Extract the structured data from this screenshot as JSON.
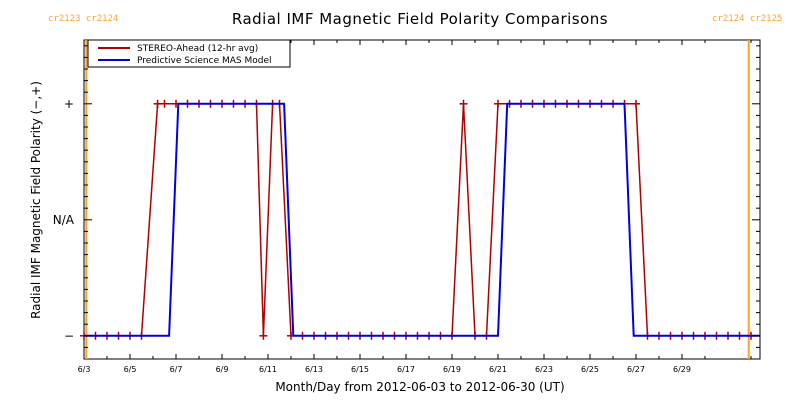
{
  "chart_data": {
    "type": "line",
    "title": "Radial IMF Magnetic Field Polarity Comparisons",
    "xlabel": "Month/Day from 2012-06-03 to 2012-06-30 (UT)",
    "ylabel": "Radial IMF Magnetic Field Polarity (−,+)",
    "x_unit": "days since 2012-06-03 00:00 UT",
    "xlim": [
      0,
      29.4
    ],
    "ylim": [
      -1.2,
      1.55
    ],
    "x_ticks": [
      {
        "value": 0,
        "label": "6/3"
      },
      {
        "value": 2,
        "label": "6/5"
      },
      {
        "value": 4,
        "label": "6/7"
      },
      {
        "value": 6,
        "label": "6/9"
      },
      {
        "value": 8,
        "label": "6/11"
      },
      {
        "value": 10,
        "label": "6/13"
      },
      {
        "value": 12,
        "label": "6/15"
      },
      {
        "value": 14,
        "label": "6/17"
      },
      {
        "value": 16,
        "label": "6/19"
      },
      {
        "value": 18,
        "label": "6/21"
      },
      {
        "value": 20,
        "label": "6/23"
      },
      {
        "value": 22,
        "label": "6/25"
      },
      {
        "value": 24,
        "label": "6/27"
      },
      {
        "value": 26,
        "label": "6/29"
      }
    ],
    "y_ticks": [
      {
        "value": 1,
        "label": "+"
      },
      {
        "value": 0,
        "label": "N/A"
      },
      {
        "value": -1,
        "label": "−"
      }
    ],
    "grid": false,
    "legend_position": "top-left",
    "series": [
      {
        "name": "STEREO-Ahead (12-hr avg)",
        "color": "#b00000",
        "markers": "plus",
        "points": [
          [
            0,
            -1
          ],
          [
            0.5,
            -1
          ],
          [
            1,
            -1
          ],
          [
            1.5,
            -1
          ],
          [
            2,
            -1
          ],
          [
            2.5,
            -1
          ],
          [
            3.2,
            1
          ],
          [
            3.5,
            1
          ],
          [
            4,
            1
          ],
          [
            4.5,
            1
          ],
          [
            5,
            1
          ],
          [
            5.5,
            1
          ],
          [
            6,
            1
          ],
          [
            6.5,
            1
          ],
          [
            7,
            1
          ],
          [
            7.5,
            1
          ],
          [
            7.8,
            -1
          ],
          [
            8.2,
            1
          ],
          [
            8.5,
            1
          ],
          [
            9,
            -1
          ],
          [
            9.5,
            -1
          ],
          [
            10,
            -1
          ],
          [
            10.5,
            -1
          ],
          [
            11,
            -1
          ],
          [
            11.5,
            -1
          ],
          [
            12,
            -1
          ],
          [
            12.5,
            -1
          ],
          [
            13,
            -1
          ],
          [
            13.5,
            -1
          ],
          [
            14,
            -1
          ],
          [
            14.5,
            -1
          ],
          [
            15,
            -1
          ],
          [
            15.5,
            -1
          ],
          [
            16,
            -1
          ],
          [
            16.5,
            1
          ],
          [
            17,
            -1
          ],
          [
            17.5,
            -1
          ],
          [
            18,
            1
          ],
          [
            18.5,
            1
          ],
          [
            19,
            1
          ],
          [
            19.5,
            1
          ],
          [
            20,
            1
          ],
          [
            20.5,
            1
          ],
          [
            21,
            1
          ],
          [
            21.5,
            1
          ],
          [
            22,
            1
          ],
          [
            22.5,
            1
          ],
          [
            23,
            1
          ],
          [
            23.5,
            1
          ],
          [
            24,
            1
          ],
          [
            24.5,
            -1
          ],
          [
            25,
            -1
          ],
          [
            25.5,
            -1
          ],
          [
            26,
            -1
          ],
          [
            26.5,
            -1
          ],
          [
            27,
            -1
          ],
          [
            27.5,
            -1
          ],
          [
            28,
            -1
          ],
          [
            28.5,
            -1
          ],
          [
            29,
            -1
          ]
        ]
      },
      {
        "name": "Predictive Science MAS Model",
        "color": "#0000e0",
        "markers": "none",
        "points": [
          [
            0,
            -1
          ],
          [
            3.7,
            -1
          ],
          [
            4.1,
            1
          ],
          [
            8.7,
            1
          ],
          [
            9.1,
            -1
          ],
          [
            18.0,
            -1
          ],
          [
            18.4,
            1
          ],
          [
            23.5,
            1
          ],
          [
            23.9,
            -1
          ],
          [
            29.4,
            -1
          ]
        ]
      }
    ],
    "carrington_markers": [
      {
        "x": 0.1,
        "label_left": "cr2123",
        "label_right": "cr2124",
        "color": "#ffa030"
      },
      {
        "x": 28.9,
        "label_left": "cr2124",
        "label_right": "cr2125",
        "color": "#ffa030"
      }
    ]
  }
}
